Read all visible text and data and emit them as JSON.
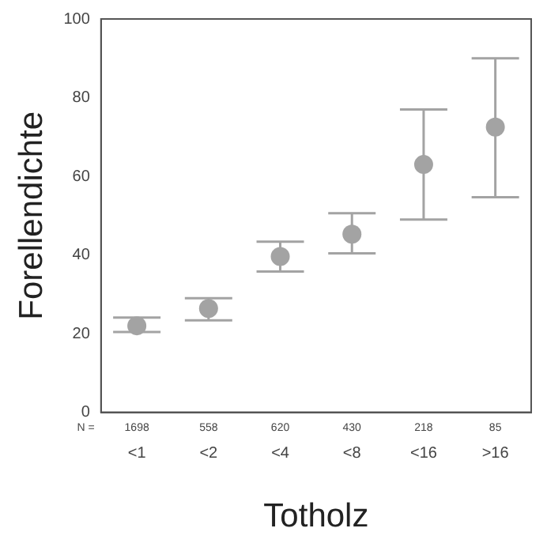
{
  "chart_data": {
    "type": "scatter",
    "xlabel": "Totholz",
    "ylabel": "Forellendichte",
    "categories": [
      "<1",
      "<2",
      "<4",
      "<8",
      "<16",
      ">16"
    ],
    "series": [
      {
        "color": "#a3a3a3",
        "values": [
          22,
          26.4,
          39.6,
          45.3,
          63,
          72.5
        ],
        "errors": [
          [
            20.4,
            24.1
          ],
          [
            23.4,
            29
          ],
          [
            35.8,
            43.4
          ],
          [
            40.4,
            50.6
          ],
          [
            49,
            77
          ],
          [
            54.7,
            90
          ]
        ]
      }
    ],
    "ylim": [
      0,
      100
    ],
    "yticks": [
      0,
      20,
      40,
      60,
      80,
      100
    ],
    "grid": false,
    "legend": false,
    "marker": "circle",
    "annotations": [
      "N =",
      "1698",
      "558",
      "620",
      "430",
      "218",
      "85"
    ]
  }
}
